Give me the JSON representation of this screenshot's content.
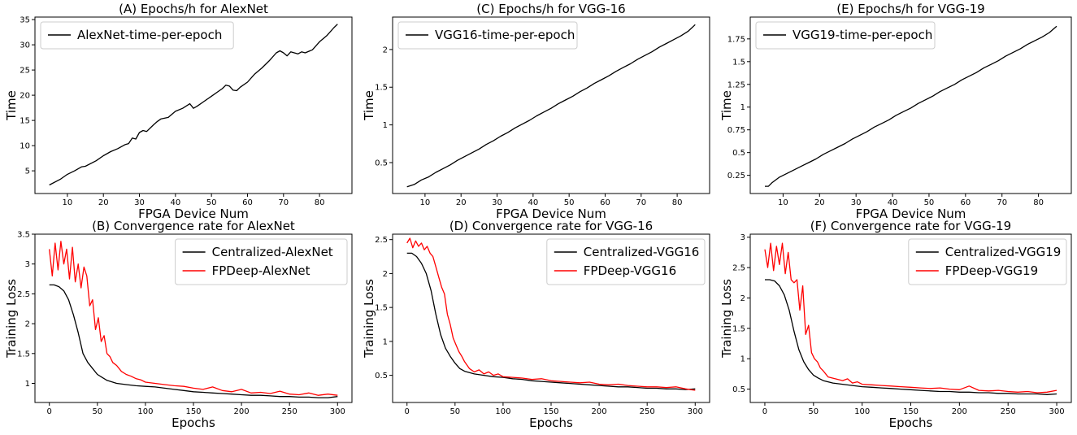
{
  "chart_data": [
    {
      "id": "A",
      "type": "line",
      "title": "(A) Epochs/h for AlexNet",
      "xlabel": "FPGA Device Num",
      "ylabel": "Time",
      "xlim": [
        1,
        89
      ],
      "ylim": [
        0.5,
        35.5
      ],
      "xticks": [
        10,
        20,
        30,
        40,
        50,
        60,
        70,
        80
      ],
      "yticks": [
        5,
        10,
        15,
        20,
        25,
        30,
        35
      ],
      "legend_position": "top-left",
      "series": [
        {
          "name": "AlexNet-time-per-epoch",
          "color": "#000000",
          "x": [
            5,
            8,
            10,
            12,
            14,
            15,
            18,
            20,
            22,
            24,
            26,
            27,
            28,
            29,
            30,
            31,
            32,
            34,
            35,
            36,
            38,
            40,
            42,
            44,
            45,
            46,
            48,
            50,
            52,
            53,
            54,
            55,
            56,
            57,
            58,
            60,
            62,
            64,
            66,
            68,
            69,
            70,
            71,
            72,
            74,
            75,
            76,
            78,
            80,
            82,
            84,
            85
          ],
          "y": [
            2.2,
            3.3,
            4.3,
            5.0,
            5.8,
            5.9,
            7.0,
            8.0,
            8.8,
            9.4,
            10.2,
            10.4,
            11.5,
            11.3,
            12.6,
            13.0,
            12.8,
            14.2,
            14.8,
            15.3,
            15.6,
            16.8,
            17.4,
            18.3,
            17.4,
            17.8,
            18.8,
            19.8,
            20.8,
            21.3,
            22.0,
            21.8,
            21.0,
            20.9,
            21.6,
            22.6,
            24.2,
            25.4,
            26.8,
            28.4,
            28.8,
            28.4,
            27.8,
            28.6,
            28.2,
            28.6,
            28.4,
            29.0,
            30.6,
            31.8,
            33.4,
            34.1
          ]
        }
      ]
    },
    {
      "id": "C",
      "type": "line",
      "title": "(C) Epochs/h for VGG-16",
      "xlabel": "FPGA Device Num",
      "ylabel": "Time",
      "xlim": [
        1,
        89
      ],
      "ylim": [
        0.09,
        2.43
      ],
      "xticks": [
        10,
        20,
        30,
        40,
        50,
        60,
        70,
        80
      ],
      "yticks": [
        0.5,
        1.0,
        1.5,
        2.0
      ],
      "legend_position": "top-left",
      "series": [
        {
          "name": "VGG16-time-per-epoch",
          "color": "#000000",
          "x": [
            5,
            7,
            9,
            11,
            13,
            15,
            17,
            19,
            21,
            23,
            25,
            27,
            29,
            31,
            33,
            35,
            37,
            39,
            41,
            43,
            45,
            47,
            49,
            51,
            53,
            55,
            57,
            59,
            61,
            63,
            65,
            67,
            69,
            71,
            73,
            75,
            77,
            79,
            81,
            83,
            85
          ],
          "y": [
            0.18,
            0.21,
            0.27,
            0.31,
            0.37,
            0.42,
            0.47,
            0.53,
            0.58,
            0.63,
            0.68,
            0.74,
            0.79,
            0.85,
            0.9,
            0.96,
            1.01,
            1.06,
            1.12,
            1.17,
            1.22,
            1.28,
            1.33,
            1.38,
            1.44,
            1.49,
            1.55,
            1.6,
            1.65,
            1.71,
            1.76,
            1.81,
            1.87,
            1.92,
            1.97,
            2.03,
            2.08,
            2.13,
            2.18,
            2.24,
            2.33
          ]
        }
      ]
    },
    {
      "id": "E",
      "type": "line",
      "title": "(E) Epochs/h for VGG-19",
      "xlabel": "FPGA Device Num",
      "ylabel": "Time",
      "xlim": [
        1,
        89
      ],
      "ylim": [
        0.05,
        1.99
      ],
      "xticks": [
        10,
        20,
        30,
        40,
        50,
        60,
        70,
        80
      ],
      "yticks": [
        0.25,
        0.5,
        0.75,
        1.0,
        1.25,
        1.5,
        1.75
      ],
      "legend_position": "top-left",
      "series": [
        {
          "name": "VGG19-time-per-epoch",
          "color": "#000000",
          "x": [
            5,
            6,
            7,
            9,
            11,
            13,
            15,
            17,
            19,
            21,
            23,
            25,
            27,
            29,
            31,
            33,
            35,
            37,
            39,
            41,
            43,
            45,
            47,
            49,
            51,
            53,
            55,
            57,
            59,
            61,
            63,
            65,
            67,
            69,
            71,
            73,
            75,
            77,
            79,
            81,
            83,
            85
          ],
          "y": [
            0.13,
            0.13,
            0.17,
            0.23,
            0.27,
            0.31,
            0.35,
            0.39,
            0.43,
            0.48,
            0.52,
            0.56,
            0.6,
            0.65,
            0.69,
            0.73,
            0.78,
            0.82,
            0.86,
            0.91,
            0.95,
            0.99,
            1.04,
            1.08,
            1.12,
            1.17,
            1.21,
            1.25,
            1.3,
            1.34,
            1.38,
            1.43,
            1.47,
            1.51,
            1.56,
            1.6,
            1.64,
            1.69,
            1.73,
            1.77,
            1.82,
            1.89
          ]
        }
      ]
    },
    {
      "id": "B",
      "type": "line",
      "title": "(B) Convergence rate for AlexNet",
      "xlabel": "Epochs",
      "ylabel": "Training Loss",
      "xlim": [
        -15,
        315
      ],
      "ylim": [
        0.68,
        3.5
      ],
      "xticks": [
        0,
        50,
        100,
        150,
        200,
        250,
        300
      ],
      "yticks": [
        1.0,
        1.5,
        2.0,
        2.5,
        3.0,
        3.5
      ],
      "legend_position": "top-right",
      "series": [
        {
          "name": "Centralized-AlexNet",
          "color": "#000000",
          "x": [
            0,
            5,
            10,
            15,
            20,
            25,
            30,
            35,
            40,
            45,
            50,
            55,
            60,
            70,
            80,
            90,
            100,
            110,
            120,
            130,
            140,
            150,
            160,
            170,
            180,
            190,
            200,
            210,
            220,
            230,
            240,
            250,
            260,
            270,
            280,
            290,
            300
          ],
          "y": [
            2.65,
            2.65,
            2.62,
            2.55,
            2.4,
            2.15,
            1.85,
            1.5,
            1.35,
            1.25,
            1.15,
            1.1,
            1.05,
            1.0,
            0.98,
            0.96,
            0.95,
            0.94,
            0.92,
            0.9,
            0.88,
            0.86,
            0.85,
            0.84,
            0.83,
            0.82,
            0.81,
            0.8,
            0.8,
            0.79,
            0.78,
            0.78,
            0.77,
            0.77,
            0.76,
            0.76,
            0.78
          ]
        },
        {
          "name": "FPDeep-AlexNet",
          "color": "#ff0000",
          "x": [
            0,
            3,
            6,
            9,
            12,
            15,
            18,
            21,
            24,
            27,
            30,
            33,
            36,
            39,
            42,
            45,
            48,
            51,
            54,
            57,
            60,
            63,
            66,
            70,
            75,
            80,
            85,
            90,
            95,
            100,
            110,
            120,
            130,
            140,
            150,
            160,
            170,
            180,
            190,
            200,
            210,
            220,
            230,
            240,
            250,
            260,
            270,
            280,
            290,
            300
          ],
          "y": [
            3.25,
            2.8,
            3.35,
            2.9,
            3.38,
            3.0,
            3.25,
            2.75,
            3.28,
            2.7,
            3.0,
            2.6,
            2.95,
            2.8,
            2.3,
            2.4,
            1.9,
            2.1,
            1.7,
            1.8,
            1.5,
            1.45,
            1.35,
            1.3,
            1.2,
            1.15,
            1.12,
            1.08,
            1.06,
            1.02,
            1.0,
            0.98,
            0.96,
            0.95,
            0.92,
            0.9,
            0.94,
            0.88,
            0.86,
            0.9,
            0.84,
            0.85,
            0.83,
            0.87,
            0.82,
            0.81,
            0.84,
            0.8,
            0.82,
            0.8
          ]
        }
      ]
    },
    {
      "id": "D",
      "type": "line",
      "title": "(D) Convergence rate for VGG-16",
      "xlabel": "Epochs",
      "ylabel": "Training Loss",
      "xlim": [
        -15,
        315
      ],
      "ylim": [
        0.1,
        2.58
      ],
      "xticks": [
        0,
        50,
        100,
        150,
        200,
        250,
        300
      ],
      "yticks": [
        0.5,
        1.0,
        1.5,
        2.0,
        2.5
      ],
      "legend_position": "top-right",
      "series": [
        {
          "name": "Centralized-VGG16",
          "color": "#000000",
          "x": [
            0,
            5,
            10,
            15,
            20,
            25,
            30,
            35,
            40,
            45,
            50,
            55,
            60,
            70,
            80,
            90,
            100,
            110,
            120,
            130,
            140,
            150,
            160,
            170,
            180,
            190,
            200,
            210,
            220,
            230,
            240,
            250,
            260,
            270,
            280,
            290,
            300
          ],
          "y": [
            2.3,
            2.3,
            2.25,
            2.15,
            2.0,
            1.75,
            1.4,
            1.1,
            0.9,
            0.78,
            0.68,
            0.6,
            0.56,
            0.52,
            0.5,
            0.48,
            0.47,
            0.45,
            0.44,
            0.42,
            0.41,
            0.4,
            0.39,
            0.38,
            0.37,
            0.36,
            0.35,
            0.34,
            0.33,
            0.33,
            0.32,
            0.31,
            0.31,
            0.3,
            0.3,
            0.29,
            0.3
          ]
        },
        {
          "name": "FPDeep-VGG16",
          "color": "#ff0000",
          "x": [
            0,
            3,
            6,
            9,
            12,
            15,
            18,
            21,
            24,
            27,
            30,
            33,
            36,
            39,
            42,
            45,
            48,
            51,
            54,
            57,
            60,
            65,
            70,
            75,
            80,
            85,
            90,
            95,
            100,
            110,
            120,
            130,
            140,
            150,
            160,
            170,
            180,
            190,
            200,
            210,
            220,
            230,
            240,
            250,
            260,
            270,
            280,
            290,
            300
          ],
          "y": [
            2.45,
            2.52,
            2.38,
            2.48,
            2.4,
            2.45,
            2.35,
            2.4,
            2.3,
            2.25,
            2.1,
            1.95,
            1.8,
            1.7,
            1.4,
            1.25,
            1.05,
            0.95,
            0.85,
            0.78,
            0.7,
            0.6,
            0.55,
            0.58,
            0.52,
            0.55,
            0.5,
            0.52,
            0.48,
            0.47,
            0.46,
            0.44,
            0.45,
            0.42,
            0.41,
            0.4,
            0.39,
            0.4,
            0.37,
            0.36,
            0.37,
            0.35,
            0.34,
            0.33,
            0.33,
            0.32,
            0.33,
            0.3,
            0.28
          ]
        }
      ]
    },
    {
      "id": "F",
      "type": "line",
      "title": "(F) Convergence rate for VGG-19",
      "xlabel": "Epochs",
      "ylabel": "Training Loss",
      "xlim": [
        -15,
        315
      ],
      "ylim": [
        0.28,
        3.05
      ],
      "xticks": [
        0,
        50,
        100,
        150,
        200,
        250,
        300
      ],
      "yticks": [
        0.5,
        1.0,
        1.5,
        2.0,
        2.5,
        3.0
      ],
      "legend_position": "top-right",
      "series": [
        {
          "name": "Centralized-VGG19",
          "color": "#000000",
          "x": [
            0,
            5,
            10,
            15,
            20,
            25,
            30,
            35,
            40,
            45,
            50,
            55,
            60,
            70,
            80,
            90,
            100,
            110,
            120,
            130,
            140,
            150,
            160,
            170,
            180,
            190,
            200,
            210,
            220,
            230,
            240,
            250,
            260,
            270,
            280,
            290,
            300
          ],
          "y": [
            2.3,
            2.3,
            2.28,
            2.2,
            2.05,
            1.8,
            1.45,
            1.15,
            0.95,
            0.82,
            0.73,
            0.68,
            0.64,
            0.6,
            0.58,
            0.56,
            0.54,
            0.53,
            0.52,
            0.51,
            0.5,
            0.49,
            0.48,
            0.47,
            0.46,
            0.46,
            0.45,
            0.45,
            0.44,
            0.44,
            0.43,
            0.43,
            0.42,
            0.42,
            0.42,
            0.41,
            0.42
          ]
        },
        {
          "name": "FPDeep-VGG19",
          "color": "#ff0000",
          "x": [
            0,
            3,
            6,
            9,
            12,
            15,
            18,
            21,
            24,
            27,
            30,
            33,
            36,
            39,
            42,
            45,
            48,
            51,
            54,
            57,
            60,
            65,
            70,
            75,
            80,
            85,
            90,
            95,
            100,
            110,
            120,
            130,
            140,
            150,
            160,
            170,
            180,
            190,
            200,
            210,
            220,
            230,
            240,
            250,
            260,
            270,
            280,
            290,
            300
          ],
          "y": [
            2.8,
            2.5,
            2.9,
            2.45,
            2.85,
            2.55,
            2.9,
            2.4,
            2.75,
            2.3,
            2.25,
            2.3,
            1.8,
            2.2,
            1.4,
            1.55,
            1.1,
            1.0,
            0.95,
            0.85,
            0.8,
            0.7,
            0.68,
            0.66,
            0.64,
            0.67,
            0.6,
            0.62,
            0.58,
            0.57,
            0.56,
            0.55,
            0.54,
            0.53,
            0.52,
            0.51,
            0.52,
            0.5,
            0.49,
            0.55,
            0.48,
            0.47,
            0.48,
            0.46,
            0.45,
            0.46,
            0.44,
            0.45,
            0.48
          ]
        }
      ]
    }
  ]
}
